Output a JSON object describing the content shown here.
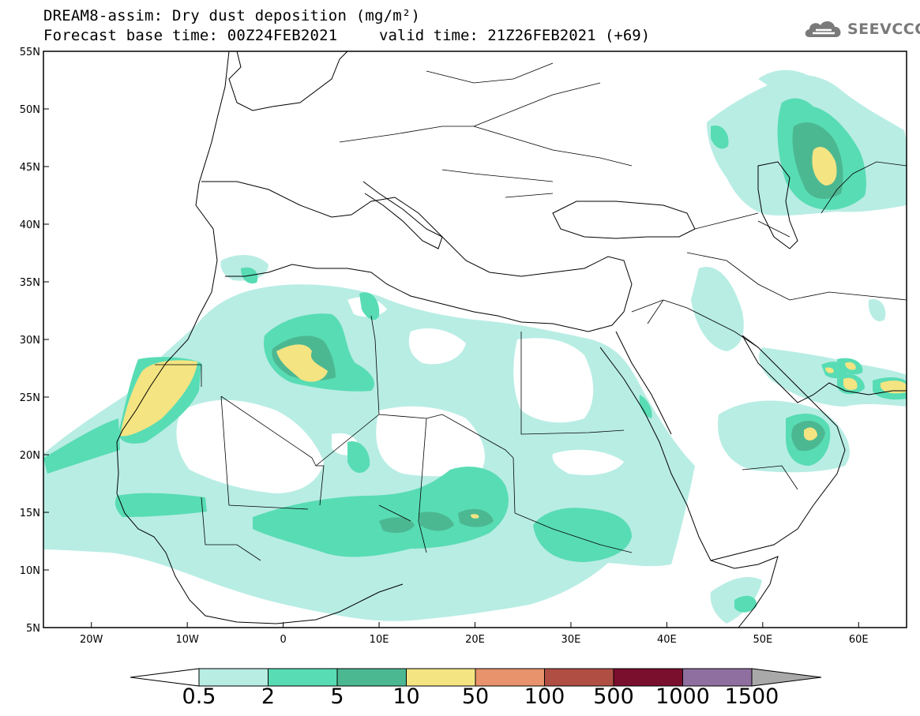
{
  "header": {
    "title_line1": "DREAM8-assim: Dry dust deposition (mg/m²)",
    "title_line2_left": "Forecast base time: 00Z24FEB2021",
    "title_line2_right": "valid time: 21Z26FEB2021 (+69)"
  },
  "logo": {
    "text": "SEEVCCC",
    "icon": "cloud-icon"
  },
  "map": {
    "lon_range": [
      -25,
      65
    ],
    "lat_range": [
      5,
      55
    ],
    "lon_ticks": [
      {
        "value": -20,
        "label": "20W"
      },
      {
        "value": -10,
        "label": "10W"
      },
      {
        "value": 0,
        "label": "0"
      },
      {
        "value": 10,
        "label": "10E"
      },
      {
        "value": 20,
        "label": "20E"
      },
      {
        "value": 30,
        "label": "30E"
      },
      {
        "value": 40,
        "label": "40E"
      },
      {
        "value": 50,
        "label": "50E"
      },
      {
        "value": 60,
        "label": "60E"
      }
    ],
    "lat_ticks": [
      {
        "value": 5,
        "label": "5N"
      },
      {
        "value": 10,
        "label": "10N"
      },
      {
        "value": 15,
        "label": "15N"
      },
      {
        "value": 20,
        "label": "20N"
      },
      {
        "value": 25,
        "label": "25N"
      },
      {
        "value": 30,
        "label": "30N"
      },
      {
        "value": 35,
        "label": "35N"
      },
      {
        "value": 40,
        "label": "40N"
      },
      {
        "value": 45,
        "label": "45N"
      },
      {
        "value": 50,
        "label": "50N"
      },
      {
        "value": 55,
        "label": "55N"
      }
    ]
  },
  "colorbar": {
    "labels": [
      "0.5",
      "2",
      "5",
      "10",
      "50",
      "100",
      "500",
      "1000",
      "1500"
    ],
    "colors": [
      "#b8ede4",
      "#58dcb4",
      "#4cb891",
      "#f4e482",
      "#e8936b",
      "#b04e43",
      "#7a0e2d",
      "#8f6fa0"
    ],
    "under_color": "#ffffff",
    "over_color": "#a9a9a9"
  },
  "fill_colors": {
    "level1": "#b8ede4",
    "level2": "#58dcb4",
    "level3": "#4cb891",
    "level4": "#f4e482"
  }
}
